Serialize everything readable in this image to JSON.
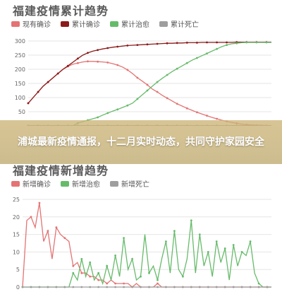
{
  "overlay": {
    "headline": "浦城最新疫情通报，十二月实时动态，共同守护家园安全"
  },
  "chart_data": [
    {
      "type": "line",
      "title": "福建疫情累计趋势",
      "legend": [
        {
          "label": "现有确诊",
          "color": "#e57373"
        },
        {
          "label": "累计确诊",
          "color": "#8b1a1a"
        },
        {
          "label": "累计治愈",
          "color": "#66bb6a"
        },
        {
          "label": "累计死亡",
          "color": "#9e9e9e"
        }
      ],
      "y_ticks": [
        "300",
        "250",
        "200",
        "150",
        "100",
        "50"
      ],
      "ylim": [
        0,
        300
      ],
      "x": [
        0,
        1,
        2,
        3,
        4,
        5,
        6,
        7,
        8,
        9,
        10,
        11,
        12,
        13,
        14,
        15,
        16,
        17,
        18,
        19,
        20,
        21,
        22,
        23,
        24,
        25,
        26,
        27,
        28,
        29,
        30,
        31,
        32,
        33,
        34,
        35,
        36,
        37,
        38,
        39,
        40,
        41,
        42,
        43,
        44,
        45,
        46,
        47,
        48,
        49
      ],
      "series": [
        {
          "name": "现有确诊",
          "color": "#e57373",
          "values": [
            80,
            100,
            120,
            140,
            155,
            170,
            185,
            200,
            210,
            218,
            222,
            226,
            228,
            228,
            227,
            226,
            224,
            220,
            215,
            208,
            198,
            185,
            170,
            158,
            145,
            130,
            120,
            108,
            98,
            88,
            78,
            70,
            62,
            55,
            48,
            42,
            36,
            30,
            25,
            20,
            16,
            12,
            9,
            6,
            4,
            3,
            2,
            2,
            1,
            1
          ]
        },
        {
          "name": "累计确诊",
          "color": "#8b1a1a",
          "values": [
            80,
            100,
            120,
            140,
            155,
            170,
            185,
            200,
            212,
            225,
            238,
            250,
            258,
            264,
            268,
            272,
            275,
            278,
            280,
            282,
            284,
            285,
            286,
            287,
            288,
            289,
            290,
            291,
            292,
            292,
            293,
            293,
            294,
            294,
            294,
            295,
            295,
            295,
            295,
            295,
            295,
            295,
            296,
            296,
            296,
            296,
            296,
            296,
            296,
            296
          ]
        },
        {
          "name": "累计治愈",
          "color": "#66bb6a",
          "values": [
            0,
            0,
            0,
            0,
            0,
            0,
            0,
            0,
            0,
            0,
            10,
            15,
            20,
            25,
            30,
            38,
            45,
            52,
            58,
            65,
            72,
            80,
            95,
            110,
            125,
            140,
            155,
            168,
            180,
            192,
            202,
            212,
            222,
            232,
            240,
            248,
            256,
            264,
            272,
            280,
            286,
            290,
            292,
            294,
            295,
            295,
            295,
            295,
            295,
            295
          ]
        },
        {
          "name": "累计死亡",
          "color": "#9e9e9e",
          "values": [
            1,
            1,
            1,
            1,
            1,
            1,
            1,
            1,
            1,
            1,
            1,
            1,
            1,
            1,
            1,
            1,
            1,
            1,
            1,
            1,
            1,
            1,
            1,
            1,
            1,
            1,
            1,
            1,
            1,
            1,
            1,
            1,
            1,
            1,
            1,
            1,
            1,
            1,
            1,
            1,
            1,
            1,
            1,
            1,
            1,
            1,
            1,
            1,
            1,
            1
          ]
        }
      ]
    },
    {
      "type": "line",
      "title": "福建疫情新增趋势",
      "legend": [
        {
          "label": "新增确诊",
          "color": "#e57373"
        },
        {
          "label": "新增治愈",
          "color": "#66bb6a"
        },
        {
          "label": "新增死亡",
          "color": "#9e9e9e"
        }
      ],
      "y_ticks": [
        "25",
        "20",
        "15",
        "10",
        "5",
        "0"
      ],
      "ylim": [
        0,
        25
      ],
      "x": [
        0,
        1,
        2,
        3,
        4,
        5,
        6,
        7,
        8,
        9,
        10,
        11,
        12,
        13,
        14,
        15,
        16,
        17,
        18,
        19,
        20,
        21,
        22,
        23,
        24,
        25,
        26,
        27,
        28,
        29,
        30,
        31,
        32,
        33,
        34,
        35,
        36,
        37,
        38,
        39,
        40,
        41,
        42,
        43,
        44,
        45,
        46,
        47,
        48,
        49,
        50,
        51,
        52,
        53,
        54,
        55,
        56,
        57,
        58,
        59
      ],
      "series": [
        {
          "name": "新增确诊",
          "color": "#e57373",
          "values": [
            0,
            19,
            20,
            17,
            24,
            13,
            16,
            8,
            17,
            15,
            14,
            13,
            6,
            7,
            4,
            4,
            3,
            3,
            2,
            2,
            1,
            2,
            1,
            1,
            1,
            1,
            0,
            1,
            0,
            0,
            0,
            0,
            1,
            0,
            0,
            0,
            0,
            0,
            0,
            0,
            0,
            0,
            0,
            0,
            0,
            0,
            0,
            0,
            0,
            0,
            0,
            0,
            0,
            0,
            0,
            0,
            0,
            0,
            0,
            0
          ]
        },
        {
          "name": "新增治愈",
          "color": "#66bb6a",
          "values": [
            0,
            0,
            0,
            0,
            0,
            0,
            0,
            0,
            0,
            0,
            0,
            0,
            4,
            2,
            8,
            3,
            7,
            2,
            4,
            1,
            6,
            2,
            9,
            3,
            14,
            5,
            8,
            2,
            3,
            15,
            4,
            6,
            2,
            8,
            13,
            4,
            16,
            5,
            3,
            8,
            19,
            4,
            15,
            6,
            10,
            3,
            13,
            7,
            11,
            2,
            12,
            6,
            10,
            9,
            13,
            4,
            1,
            0,
            0,
            0
          ]
        },
        {
          "name": "新增死亡",
          "color": "#9e9e9e",
          "values": [
            0,
            0,
            0,
            0,
            0,
            0,
            0,
            0,
            0,
            0,
            0,
            0,
            0,
            0,
            0,
            0,
            0,
            0,
            0,
            0,
            0,
            0,
            0,
            0,
            0,
            0,
            0,
            0,
            0,
            0,
            0,
            0,
            0,
            0,
            0,
            0,
            0,
            0,
            0,
            0,
            0,
            0,
            0,
            0,
            0,
            0,
            0,
            0,
            0,
            0,
            0,
            0,
            0,
            0,
            0,
            0,
            0,
            0,
            0,
            0
          ]
        }
      ]
    }
  ]
}
